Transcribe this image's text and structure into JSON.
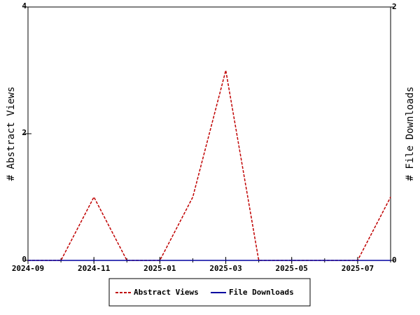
{
  "chart_data": {
    "type": "line",
    "x": [
      "2024-09",
      "2024-10",
      "2024-11",
      "2024-12",
      "2025-01",
      "2025-02",
      "2025-03",
      "2025-04",
      "2025-05",
      "2025-06",
      "2025-07",
      "2025-08"
    ],
    "xlim": [
      "2024-09",
      "2025-08"
    ],
    "xticks": [
      "2024-09",
      "2024-11",
      "2025-01",
      "2025-03",
      "2025-05",
      "2025-07"
    ],
    "ylabel": "# Abstract Views",
    "y2label": "# File Downloads",
    "ylim": [
      0,
      4
    ],
    "yticks": [
      0,
      2,
      4
    ],
    "y2lim": [
      0,
      2
    ],
    "y2ticks": [
      0,
      2
    ],
    "legend": "bottom",
    "series": [
      {
        "name": "Abstract Views",
        "color": "#c00000",
        "dash": true,
        "values": [
          0,
          0,
          1,
          0,
          0,
          1,
          3,
          0,
          0,
          0,
          0,
          1
        ]
      },
      {
        "name": "File Downloads",
        "color": "#0000a0",
        "dash": false,
        "axis": "y2",
        "values": [
          0,
          0,
          0,
          0,
          0,
          0,
          0,
          0,
          0,
          0,
          0,
          0
        ]
      }
    ]
  }
}
